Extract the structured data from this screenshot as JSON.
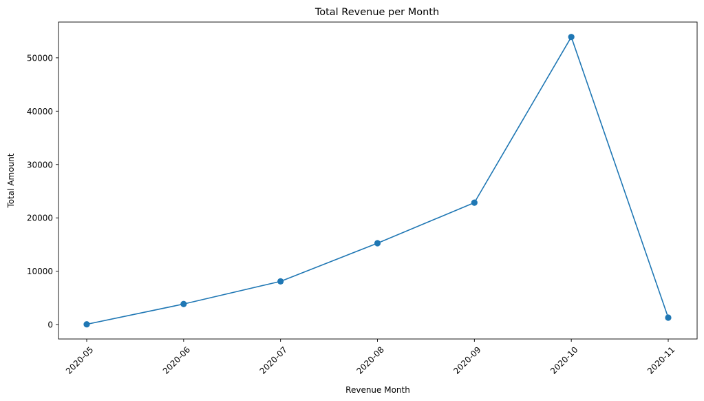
{
  "chart_data": {
    "type": "line",
    "title": "Total Revenue per Month",
    "xlabel": "Revenue Month",
    "ylabel": "Total Amount",
    "categories": [
      "2020-05",
      "2020-06",
      "2020-07",
      "2020-08",
      "2020-09",
      "2020-10",
      "2020-11"
    ],
    "series": [
      {
        "values": [
          50,
          3850,
          8100,
          15250,
          22850,
          53900,
          1300
        ],
        "color": "#1f77b4",
        "marker": "circle"
      }
    ],
    "ylim": [
      -2700,
      56700
    ],
    "yticks": [
      0,
      10000,
      20000,
      30000,
      40000,
      50000
    ],
    "x_tick_rotation": 45,
    "grid": false,
    "legend": "none"
  }
}
